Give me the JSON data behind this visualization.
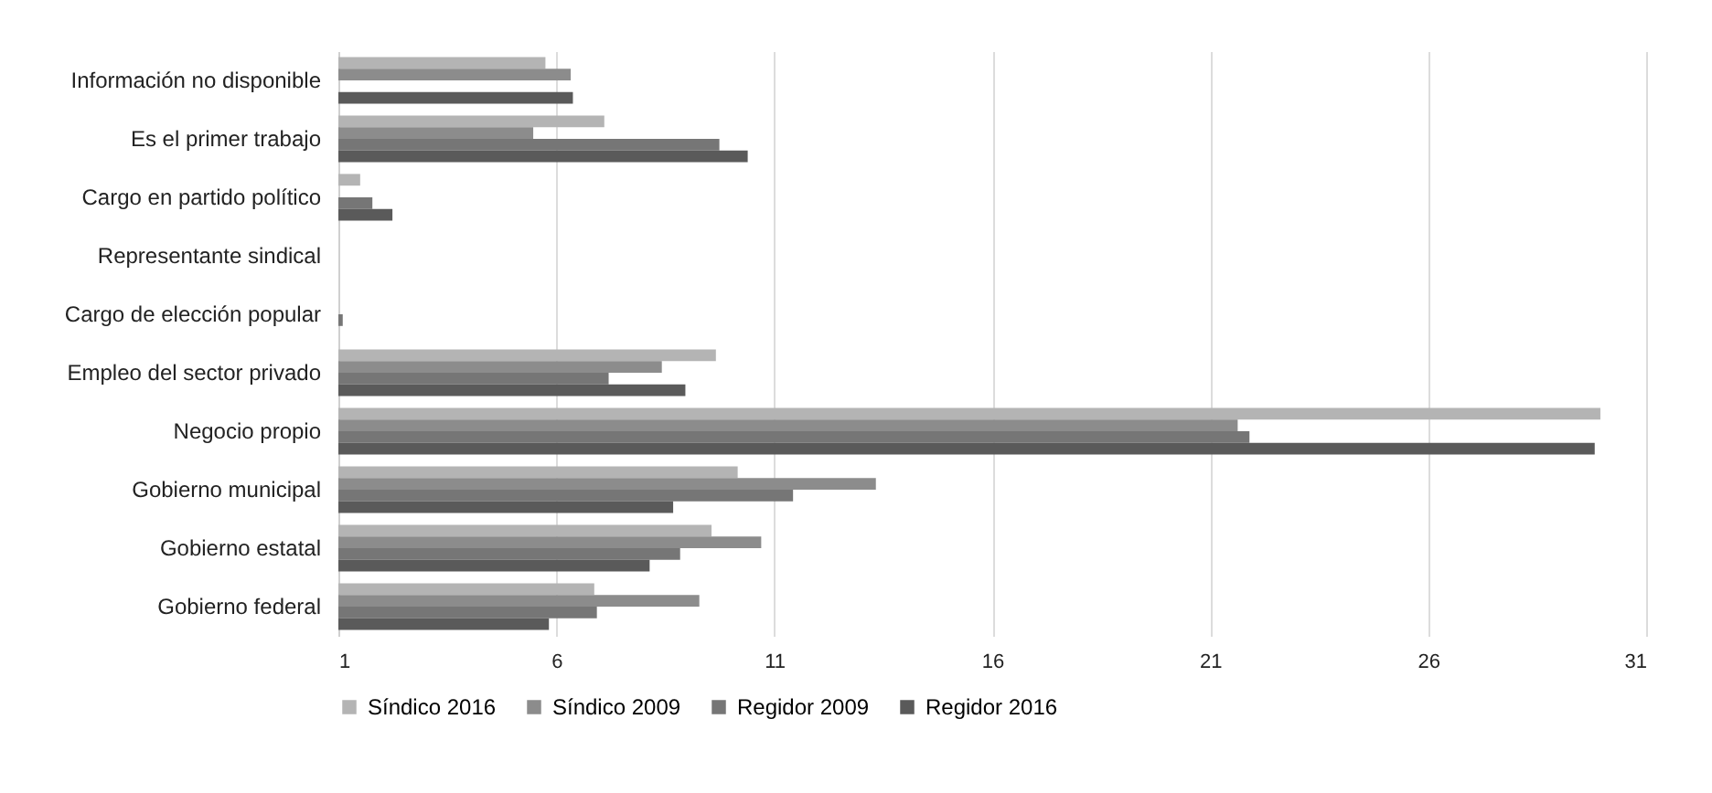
{
  "chart_data": {
    "type": "bar",
    "orientation": "horizontal",
    "categories": [
      "Información no disponible",
      "Es el primer trabajo",
      "Cargo en partido político",
      "Representante sindical",
      "Cargo de elección popular",
      "Empleo del sector privado",
      "Negocio propio",
      "Gobierno municipal",
      "Gobierno estatal",
      "Gobierno federal"
    ],
    "series": [
      {
        "name": "Síndico 2016",
        "color": "#b4b4b4",
        "values": [
          5.75,
          7.1,
          1.5,
          null,
          null,
          9.66,
          29.95,
          10.16,
          9.56,
          6.87
        ]
      },
      {
        "name": "Síndico 2009",
        "color": "#8c8c8c",
        "values": [
          6.33,
          5.47,
          null,
          null,
          null,
          8.42,
          21.63,
          13.33,
          10.7,
          9.28
        ]
      },
      {
        "name": "Regidor 2009",
        "color": "#767676",
        "values": [
          null,
          9.74,
          1.78,
          null,
          1.1,
          7.2,
          21.9,
          11.43,
          8.84,
          6.93
        ]
      },
      {
        "name": "Regidor 2016",
        "color": "#5a5a5a",
        "values": [
          6.38,
          10.39,
          2.24,
          null,
          null,
          8.96,
          29.82,
          8.68,
          8.14,
          5.83
        ]
      }
    ],
    "xlim": [
      1,
      31
    ],
    "xticks": [
      1,
      6,
      11,
      16,
      21,
      26,
      31
    ],
    "grid": "x",
    "legend": "bottom"
  }
}
